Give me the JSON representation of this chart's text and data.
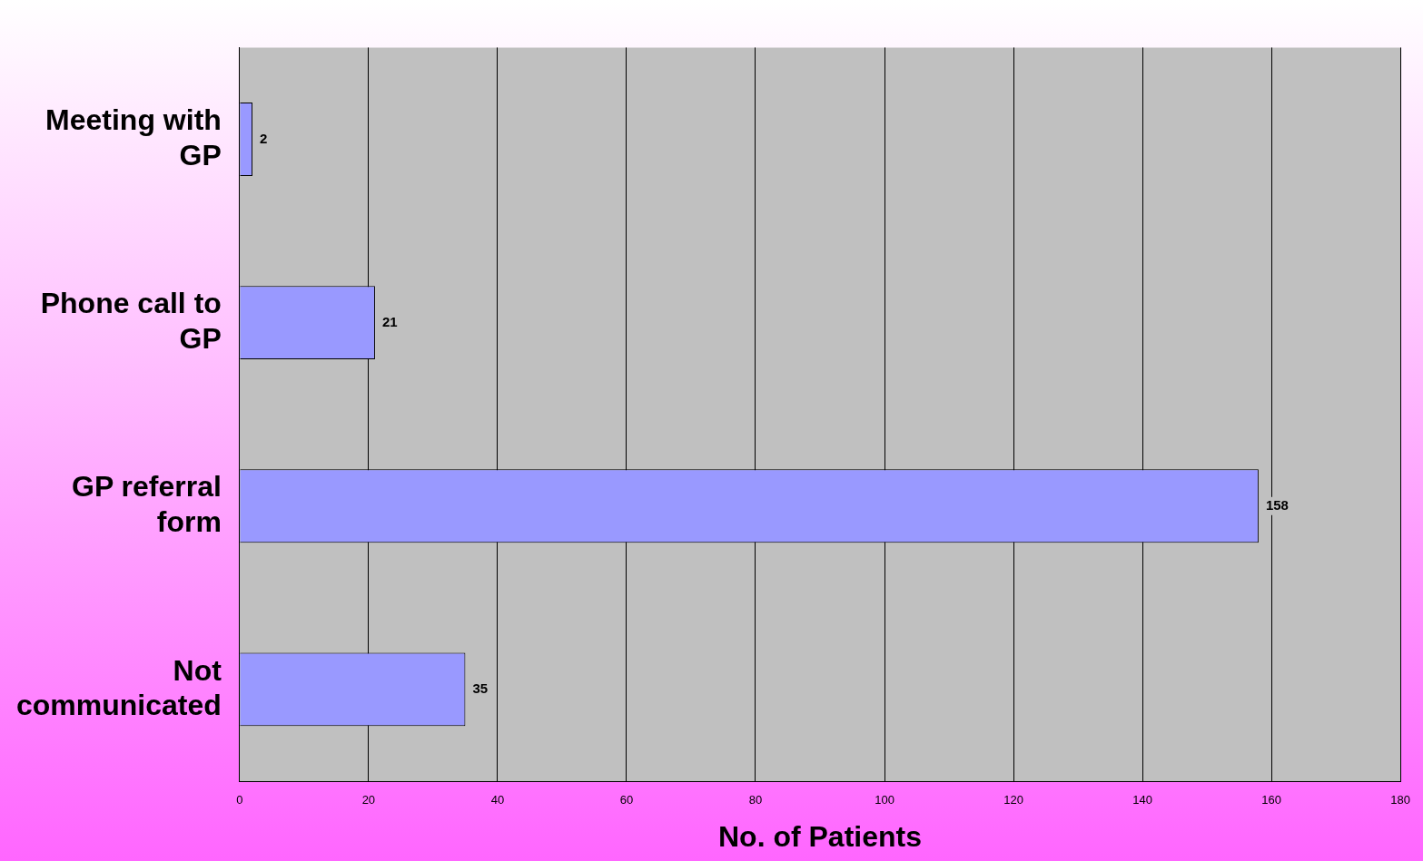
{
  "chart_data": {
    "type": "bar",
    "orientation": "horizontal",
    "xlabel": "No. of Patients",
    "categories": [
      "Meeting with GP",
      "Phone call to GP",
      "GP referral form",
      "Not communicated"
    ],
    "values": [
      2,
      21,
      158,
      35
    ],
    "color": "#9999ff",
    "xlim": [
      0,
      180
    ],
    "xticks": [
      0,
      20,
      40,
      60,
      80,
      100,
      120,
      140,
      160,
      180
    ],
    "grid": "x",
    "legend": false,
    "data_labels": true
  }
}
